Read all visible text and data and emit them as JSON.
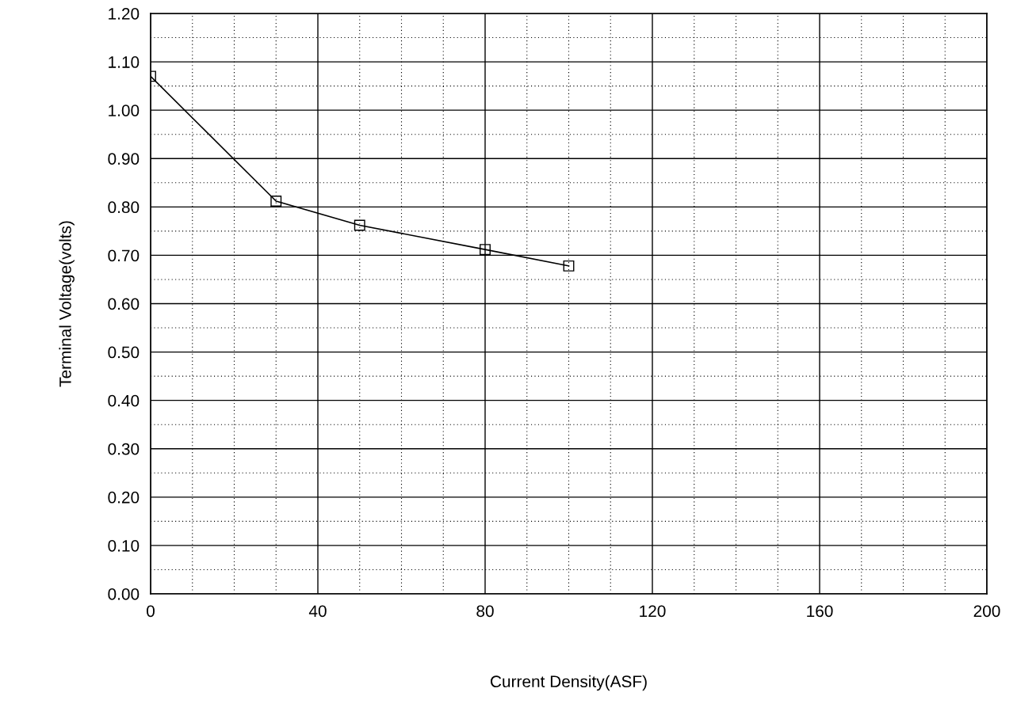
{
  "chart_data": {
    "type": "line",
    "xlabel": "Current Density(ASF)",
    "ylabel": "Terminal Voltage(volts)",
    "x": [
      0,
      30,
      50,
      80,
      100
    ],
    "series": [
      {
        "color": "#000000",
        "values": [
          1.07,
          0.812,
          0.762,
          0.712,
          0.678
        ]
      }
    ],
    "marker": "square",
    "line_style": "solid",
    "grid": true,
    "xlim": [
      0,
      200
    ],
    "xticks": [
      0,
      40,
      80,
      120,
      160,
      200
    ],
    "ylim": [
      0,
      1.2
    ],
    "yticks": [
      {
        "value": 0,
        "label": "0.00"
      },
      {
        "value": 0.1,
        "label": "0.10"
      },
      {
        "value": 0.2,
        "label": "0.20"
      },
      {
        "value": 0.3,
        "label": "0.30"
      },
      {
        "value": 0.4,
        "label": "0.40"
      },
      {
        "value": 0.5,
        "label": "0.50"
      },
      {
        "value": 0.6,
        "label": "0.60"
      },
      {
        "value": 0.7,
        "label": "0.70"
      },
      {
        "value": 0.8,
        "label": "0.80"
      },
      {
        "value": 0.9,
        "label": "0.90"
      },
      {
        "value": 1.0,
        "label": "1.00"
      },
      {
        "value": 1.1,
        "label": "1.10"
      },
      {
        "value": 1.2,
        "label": "1.20"
      }
    ]
  }
}
